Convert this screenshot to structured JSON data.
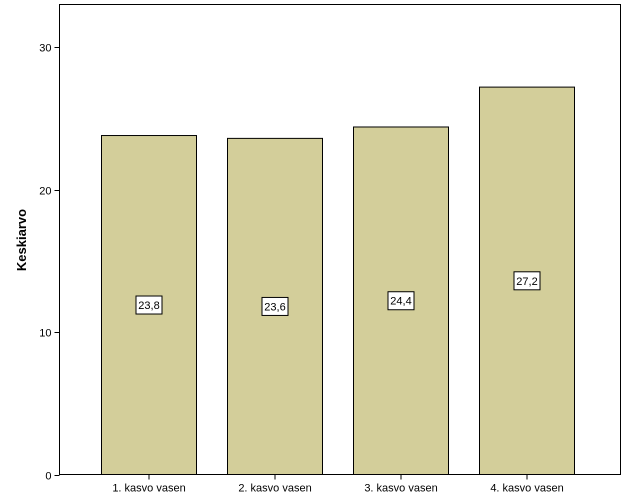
{
  "chart_data": {
    "type": "bar",
    "categories": [
      "1. kasvo vasen",
      "2. kasvo vasen",
      "3. kasvo vasen",
      "4. kasvo vasen"
    ],
    "values": [
      23.8,
      23.6,
      24.4,
      27.2
    ],
    "data_labels": [
      "23,8",
      "23,6",
      "24,4",
      "27,2"
    ],
    "ylabel": "Keskiarvo",
    "xlabel": "",
    "ylim": [
      0,
      33
    ],
    "yticks": [
      0,
      10,
      20,
      30
    ],
    "ytick_labels": [
      "0",
      "10",
      "20",
      "30"
    ],
    "grid": false,
    "legend": "none",
    "colors": {
      "bar_fill": "#d3ce9a",
      "bar_stroke": "#000000",
      "frame": "#000000",
      "background": "#ffffff"
    }
  }
}
